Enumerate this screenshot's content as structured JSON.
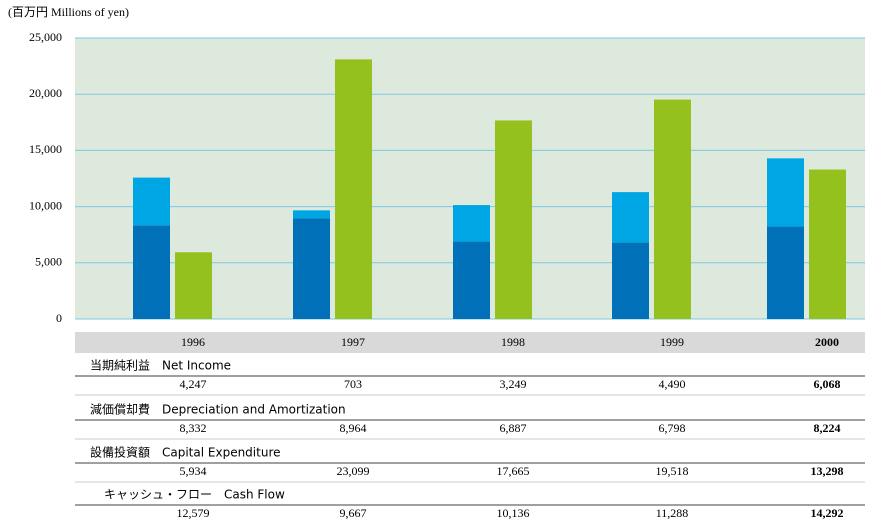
{
  "chart_data": {
    "type": "bar",
    "y_axis_label": "(百万円 Millions of yen)",
    "categories": [
      "1996",
      "1997",
      "1998",
      "1999",
      "2000"
    ],
    "highlight_color": "#1a75bb",
    "series": [
      {
        "name": "当期純利益　Net Income",
        "color": "#00a6e4",
        "values": [
          4247,
          703,
          3249,
          4490,
          6068
        ],
        "value_labels": [
          "4,247",
          "703",
          "3,249",
          "4,490",
          "6,068"
        ]
      },
      {
        "name": "減価償却費　Depreciation and Amortization",
        "color": "#0070b8",
        "values": [
          8332,
          8964,
          6887,
          6798,
          8224
        ],
        "value_labels": [
          "8,332",
          "8,964",
          "6,887",
          "6,798",
          "8,224"
        ]
      },
      {
        "name": "設備投資額　Capital Expenditure",
        "color": "#95c11f",
        "values": [
          5934,
          23099,
          17665,
          19518,
          13298
        ],
        "value_labels": [
          "5,934",
          "23,099",
          "17,665",
          "19,518",
          "13,298"
        ]
      },
      {
        "name": "キャッシュ・フロー　Cash Flow",
        "values": [
          12579,
          9667,
          10136,
          11288,
          14292
        ],
        "value_labels": [
          "12,579",
          "9,667",
          "10,136",
          "11,288",
          "14,292"
        ]
      }
    ],
    "ylim": [
      0,
      25000
    ],
    "yticks": [
      0,
      {
        "value": 5000,
        "label": "5,000"
      },
      {
        "value": 10000,
        "label": "10,000"
      },
      {
        "value": 15000,
        "label": "15,000"
      },
      {
        "value": 20000,
        "label": "20,000"
      },
      {
        "value": 25000,
        "label": "25,000"
      }
    ],
    "grid": true
  }
}
